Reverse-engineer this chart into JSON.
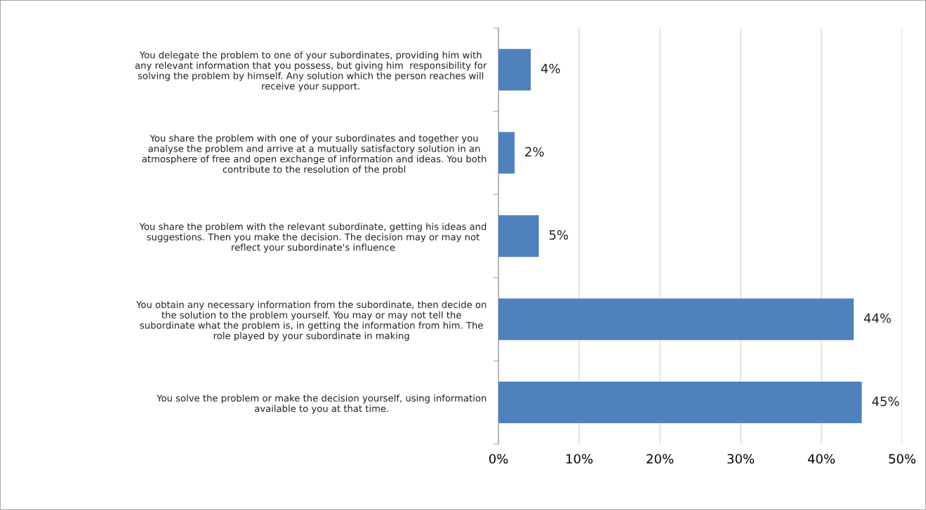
{
  "chart_data": {
    "type": "bar",
    "orientation": "horizontal",
    "categories": [
      "You delegate the problem to one of your subordinates, providing him with\nany relevant information that you possess, but giving him  responsibility for\nsolving the problem by himself. Any solution which the person reaches will\nreceive your support.",
      "You share the problem with one of your subordinates and together you\nanalyse the problem and arrive at a mutually satisfactory solution in an\natmosphere of free and open exchange of information and ideas. You both\ncontribute to the resolution of the probl",
      "You share the problem with the relevant subordinate, getting his ideas and\nsuggestions. Then you make the decision. The decision may or may not\nreflect your subordinate's influence",
      "You obtain any necessary information from the subordinate, then decide on\nthe solution to the problem yourself. You may or may not tell the\nsubordinate what the problem is, in getting the information from him. The\nrole played by your subordinate in making",
      "You solve the problem or make the decision yourself, using information\navailable to you at that time."
    ],
    "values": [
      4,
      2,
      5,
      44,
      45
    ],
    "value_labels": [
      "4%",
      "2%",
      "5%",
      "44%",
      "45%"
    ],
    "color": "#4f81bd",
    "xlim": [
      0,
      50
    ],
    "xticks": [
      {
        "value": 0,
        "label": "0%"
      },
      {
        "value": 10,
        "label": "10%"
      },
      {
        "value": 20,
        "label": "20%"
      },
      {
        "value": 30,
        "label": "30%"
      },
      {
        "value": 40,
        "label": "40%"
      },
      {
        "value": 50,
        "label": "50%"
      }
    ],
    "grid": "x",
    "legend": false
  }
}
